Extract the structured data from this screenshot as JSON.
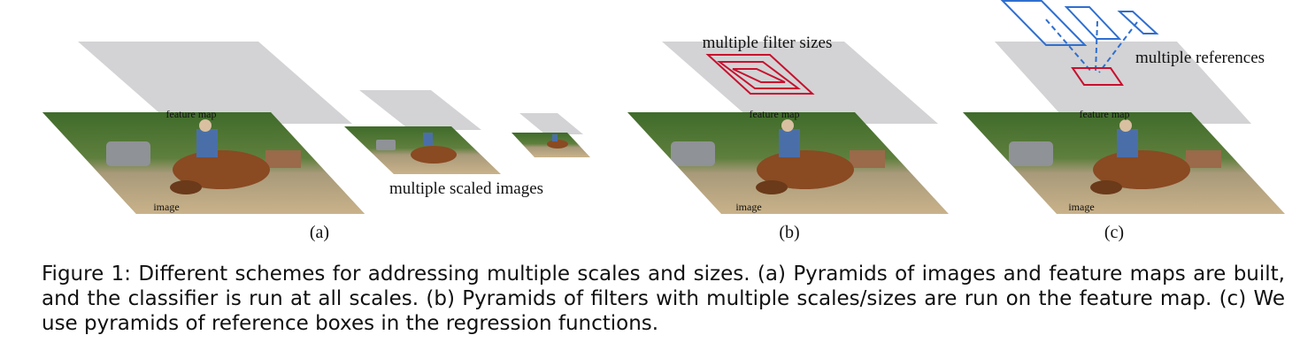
{
  "labels": {
    "feature_map": "feature map",
    "image": "image",
    "multiple_scaled_images": "multiple scaled images",
    "multiple_filter_sizes": "multiple filter sizes",
    "multiple_references": "multiple references"
  },
  "panels": {
    "a": "(a)",
    "b": "(b)",
    "c": "(c)"
  },
  "caption": "Figure 1: Different schemes for addressing multiple scales and sizes. (a) Pyramids of images and feature maps are built, and the classifier is run at all scales. (b) Pyramids of filters with multiple scales/sizes are run on the feature map. (c) We use pyramids of reference boxes in the regression functions.",
  "colors": {
    "feature_map_plane": "#d3d3d5",
    "filter_box": "#c8102e",
    "reference_box": "#2f6fd0"
  }
}
